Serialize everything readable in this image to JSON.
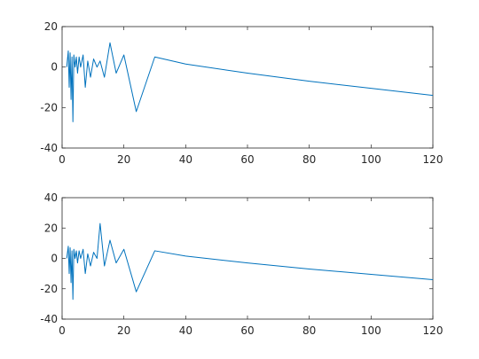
{
  "chart_data": [
    {
      "type": "line",
      "xlim": [
        0,
        120
      ],
      "ylim": [
        -40,
        20
      ],
      "x_ticks": [
        0,
        20,
        40,
        60,
        80,
        100,
        120
      ],
      "y_ticks": [
        -40,
        -20,
        0,
        20
      ],
      "grid": false,
      "series": [
        {
          "color": "#0072BD",
          "x": [
            1.5,
            2.0,
            2.3,
            2.6,
            2.9,
            3.2,
            3.5,
            3.8,
            4.2,
            4.6,
            5.0,
            5.5,
            6.0,
            6.8,
            7.5,
            8.3,
            9.2,
            10.2,
            11.3,
            12.3,
            13.7,
            15.5,
            17.5,
            20.0,
            24.0,
            30.0,
            40.0,
            60.0,
            80.0,
            100.0,
            120.0
          ],
          "y": [
            0,
            8,
            -10,
            7,
            -16,
            5,
            -27,
            6,
            0,
            5,
            -3,
            5,
            0,
            6,
            -10,
            3,
            -5,
            4,
            0,
            3,
            -5,
            12,
            -3,
            6,
            -22,
            5,
            1.5,
            -3,
            -7,
            -10.5,
            -14
          ]
        }
      ]
    },
    {
      "type": "line",
      "xlim": [
        0,
        120
      ],
      "ylim": [
        -40,
        40
      ],
      "x_ticks": [
        0,
        20,
        40,
        60,
        80,
        100,
        120
      ],
      "y_ticks": [
        -40,
        -20,
        0,
        20,
        40
      ],
      "grid": false,
      "series": [
        {
          "color": "#0072BD",
          "x": [
            1.5,
            2.0,
            2.3,
            2.6,
            2.9,
            3.2,
            3.5,
            3.8,
            4.2,
            4.6,
            5.0,
            5.5,
            6.0,
            6.8,
            7.5,
            8.3,
            9.2,
            10.2,
            11.3,
            12.3,
            13.7,
            15.5,
            17.5,
            20.0,
            24.0,
            30.0,
            40.0,
            60.0,
            80.0,
            100.0,
            120.0
          ],
          "y": [
            0,
            8,
            -10,
            7,
            -16,
            5,
            -27,
            6,
            0,
            5,
            -3,
            5,
            0,
            6,
            -10,
            3,
            -5,
            4,
            0,
            23,
            -5,
            12,
            -3,
            6,
            -22,
            5,
            1.5,
            -3,
            -7,
            -10.5,
            -14
          ]
        }
      ]
    }
  ]
}
